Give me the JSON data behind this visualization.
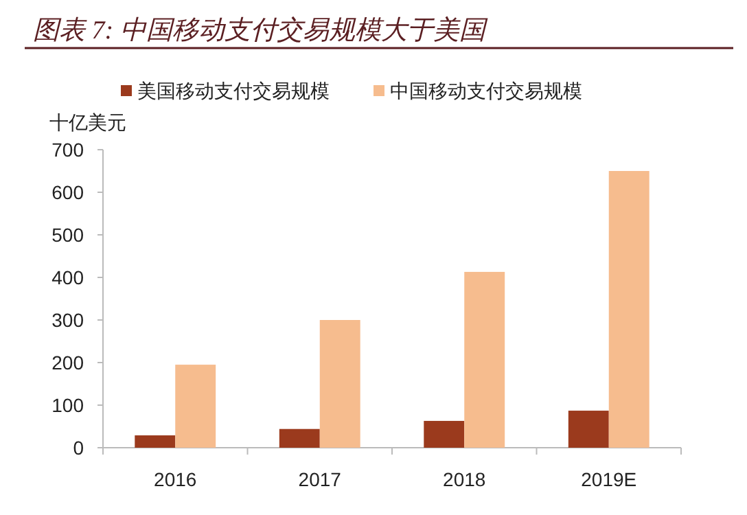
{
  "chart_data": {
    "type": "bar",
    "title": "图表 7:  中国移动支付交易规模大于美国",
    "ylabel": "十亿美元",
    "categories": [
      "2016",
      "2017",
      "2018",
      "2019E"
    ],
    "series": [
      {
        "name": "美国移动支付交易规模",
        "color": "#9b3a1d",
        "values": [
          29,
          44,
          63,
          87
        ]
      },
      {
        "name": "中国移动支付交易规模",
        "color": "#f6bc8e",
        "values": [
          195,
          300,
          413,
          650
        ]
      }
    ],
    "ylim": [
      0,
      700
    ],
    "yticks": [
      0,
      100,
      200,
      300,
      400,
      500,
      600,
      700
    ],
    "grid": false,
    "legend": "top"
  }
}
